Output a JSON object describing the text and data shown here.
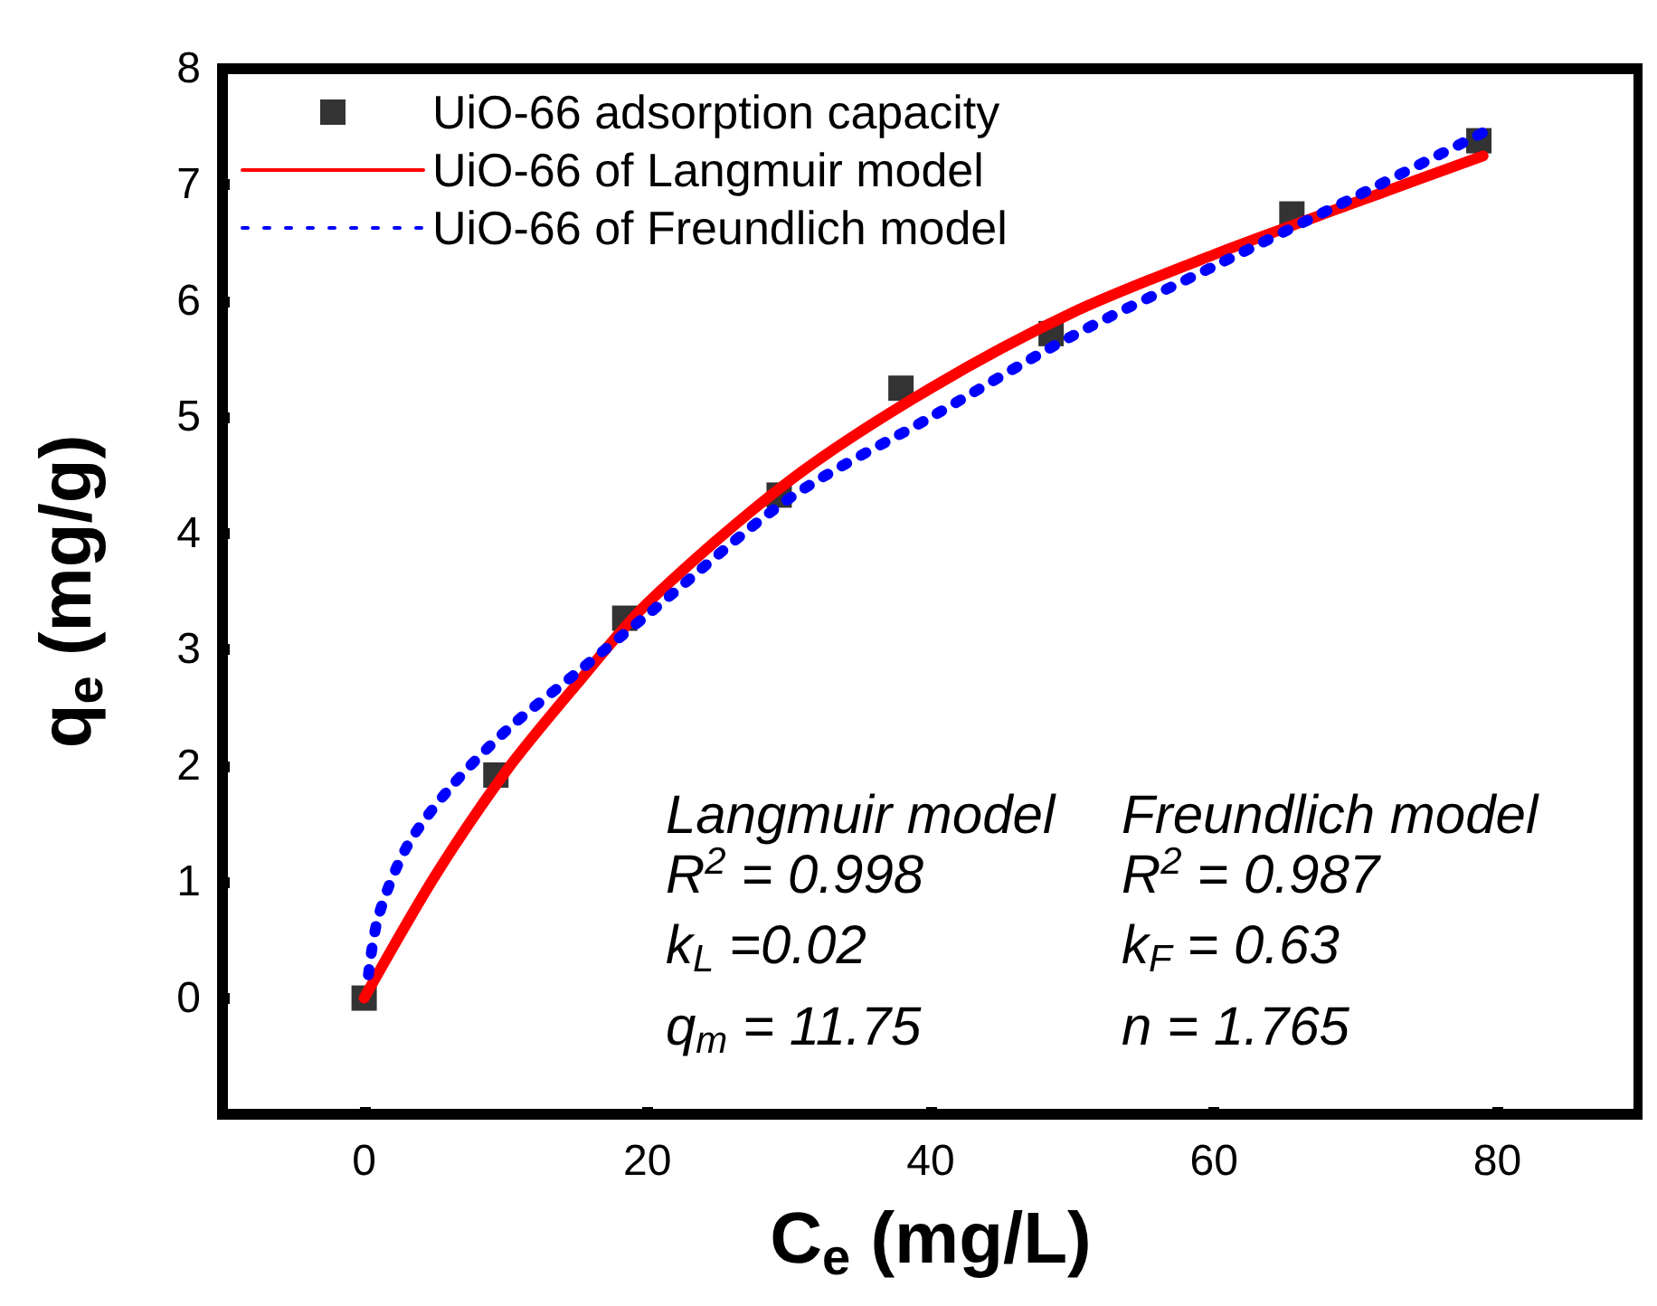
{
  "chart_data": {
    "type": "scatter",
    "xlabel": "C$_{e}$ (mg/L)",
    "ylabel": "q$_{e}$ (mg/g)",
    "xlim": [
      -10,
      90
    ],
    "xticks": [
      0,
      20,
      40,
      60,
      80
    ],
    "ylim": [
      -1,
      8
    ],
    "yticks": [
      0,
      1,
      2,
      3,
      4,
      5,
      6,
      7,
      8
    ],
    "legend": "top left",
    "series": [
      {
        "name": "UiO-66 adsorption capacity",
        "marker": "square",
        "color": "#000000",
        "x": [
          0,
          9.3,
          18.4,
          29.3,
          37.9,
          48.5,
          65.5,
          78.7
        ],
        "values": [
          0,
          1.92,
          3.27,
          4.33,
          5.25,
          5.72,
          6.75,
          7.38
        ]
      },
      {
        "name": "UiO-66 of Langmuir model",
        "type": "line",
        "marker": "none",
        "line_style": "solid",
        "color": "#ff0000",
        "x": [
          0,
          5,
          10,
          15,
          20,
          30,
          40,
          50,
          60,
          70,
          79
        ],
        "values": [
          0,
          1.05,
          1.95,
          2.7,
          3.4,
          4.45,
          5.25,
          5.9,
          6.4,
          6.85,
          7.25
        ]
      },
      {
        "name": "UiO-66 of Freundlich model",
        "type": "line",
        "marker": "none",
        "line_style": "dotted",
        "color": "#0000ff",
        "x": [
          0.3,
          1,
          3,
          6,
          10,
          15,
          20,
          30,
          40,
          50,
          60,
          70,
          79
        ],
        "values": [
          0.2,
          0.7,
          1.3,
          1.8,
          2.3,
          2.8,
          3.3,
          4.3,
          5.0,
          5.7,
          6.3,
          6.9,
          7.45
        ]
      }
    ],
    "annotations": [
      "Langmuir model",
      "R$^{2}$ = 0.998",
      "k$_{L}$ =0.02",
      "q$_{m}$ = 11.75",
      "Freundlich model",
      "R$^{2}$ = 0.987",
      "k$_{F}$ = 0.63",
      "n = 1.765"
    ]
  }
}
